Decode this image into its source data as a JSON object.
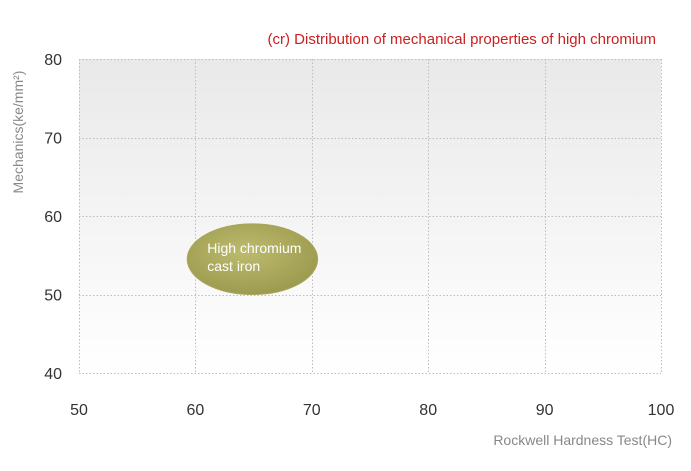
{
  "chart_data": {
    "type": "scatter",
    "title": "(cr) Distribution of mechanical properties of high chromium",
    "xlabel": "Rockwell Hardness Test(HC)",
    "ylabel": "Mechanics(ke/mm²)",
    "xlim": [
      50,
      100
    ],
    "ylim": [
      40,
      80
    ],
    "x_ticks": [
      "50",
      "60",
      "70",
      "80",
      "90",
      "100"
    ],
    "y_ticks": [
      "40",
      "50",
      "60",
      "70",
      "80"
    ],
    "grid": true,
    "regions": [
      {
        "label_lines": [
          "High chromium",
          "cast iron"
        ],
        "x_range": [
          59.3,
          70.5
        ],
        "y_range": [
          50,
          59
        ],
        "color": "#a8a657"
      }
    ]
  }
}
